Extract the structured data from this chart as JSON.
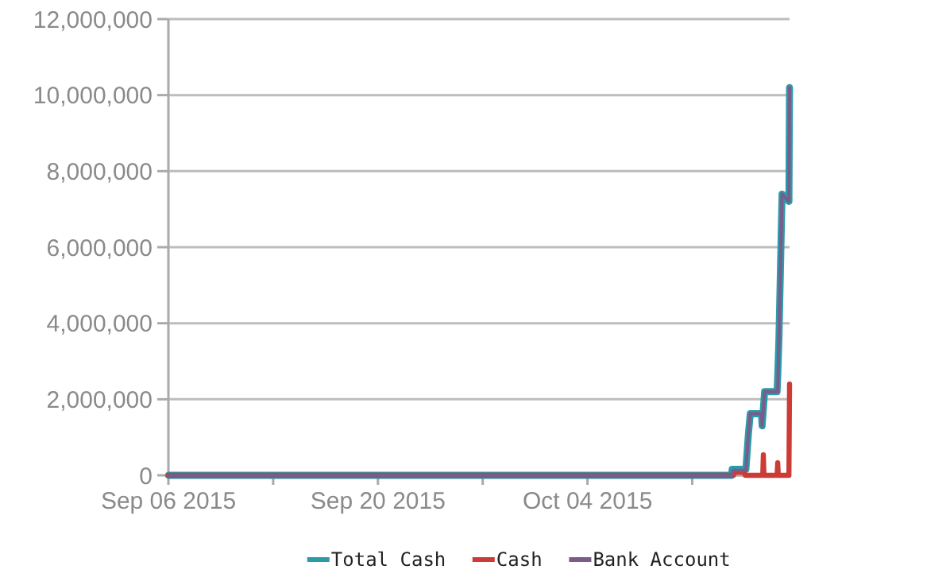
{
  "chart_data": {
    "type": "line",
    "xlim": [
      "2015-09-06",
      "2015-10-17T12:00"
    ],
    "xticks": [
      {
        "value": "2015-09-06",
        "label": "Sep 06 2015"
      },
      {
        "value": "2015-09-13",
        "label": null
      },
      {
        "value": "2015-09-20",
        "label": "Sep 20 2015"
      },
      {
        "value": "2015-09-27",
        "label": null
      },
      {
        "value": "2015-10-04",
        "label": "Oct 04 2015"
      },
      {
        "value": "2015-10-11",
        "label": null
      }
    ],
    "ylim": [
      0,
      12000000
    ],
    "yticks": [
      0,
      {
        "value": 2000000,
        "label": "2,000,000"
      },
      {
        "value": 4000000,
        "label": "4,000,000"
      },
      {
        "value": 6000000,
        "label": "6,000,000"
      },
      {
        "value": 8000000,
        "label": "8,000,000"
      },
      {
        "value": 10000000,
        "label": "10,000,000"
      },
      {
        "value": 12000000,
        "label": "12,000,000"
      }
    ],
    "grid": "y",
    "legend": "bottom",
    "marker": "none",
    "line_style": "solid",
    "series": [
      {
        "name": "Total Cash",
        "color": "#2a9bab",
        "x": [
          "2015-09-06",
          "2015-10-13T15:00",
          "2015-10-13T16:00",
          "2015-10-14T14:00",
          "2015-10-14T18:00",
          "2015-10-14T21:00",
          "2015-10-15T15:00",
          "2015-10-15T16:00",
          "2015-10-15T20:00",
          "2015-10-16T16:00",
          "2015-10-16T17:00",
          "2015-10-16T19:00",
          "2015-10-17T00:00",
          "2015-10-17T11:00",
          "2015-10-17T12:00"
        ],
        "values": [
          0,
          0,
          160000,
          160000,
          1080000,
          1620000,
          1620000,
          1300000,
          2200000,
          2200000,
          2600000,
          3600000,
          7400000,
          7200000,
          10200000
        ]
      },
      {
        "name": "Cash",
        "color": "#cc3b35",
        "x": [
          "2015-09-06",
          "2015-10-13T18:00",
          "2015-10-13T19:00",
          "2015-10-14T12:00",
          "2015-10-14T13:00",
          "2015-10-15T17:00",
          "2015-10-15T18:00",
          "2015-10-15T19:00",
          "2015-10-16T16:00",
          "2015-10-16T17:00",
          "2015-10-16T18:00",
          "2015-10-17T11:00",
          "2015-10-17T12:00"
        ],
        "values": [
          0,
          0,
          80000,
          80000,
          0,
          0,
          540000,
          0,
          0,
          330000,
          0,
          0,
          2400000
        ]
      },
      {
        "name": "Bank Account",
        "color": "#7a5c8a",
        "x": [
          "2015-09-06",
          "2015-10-13T16:00",
          "2015-10-13T17:00",
          "2015-10-14T14:00",
          "2015-10-14T18:00",
          "2015-10-14T21:00",
          "2015-10-15T15:00",
          "2015-10-15T16:00",
          "2015-10-15T20:00",
          "2015-10-16T17:00",
          "2015-10-16T19:00",
          "2015-10-17T00:00",
          "2015-10-17T11:00",
          "2015-10-17T12:00"
        ],
        "values": [
          0,
          0,
          130000,
          130000,
          1080000,
          1620000,
          1620000,
          1300000,
          2200000,
          2200000,
          3600000,
          7400000,
          7200000,
          10200000
        ]
      }
    ]
  }
}
